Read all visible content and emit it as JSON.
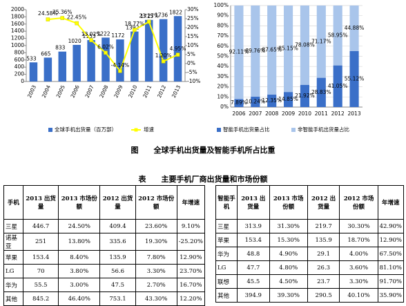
{
  "chart_data": [
    {
      "type": "bar",
      "categories": [
        "2003",
        "2004",
        "2005",
        "2006",
        "2007",
        "2008",
        "2009",
        "2010",
        "2011",
        "2012",
        "2013"
      ],
      "series": [
        {
          "name": "全球手机出货量（百万部）",
          "color": "#3a6fc8",
          "values": [
            533,
            665,
            833,
            1020,
            1153,
            1222,
            1172,
            1392,
            1715,
            1736,
            1822
          ]
        },
        {
          "name": "增速",
          "type": "line",
          "axis": "y2",
          "color": "#ffff00",
          "values": [
            null,
            24.58,
            25.36,
            22.45,
            13.02,
            6.02,
            -4.14,
            18.77,
            23.27,
            1.2,
            4.95
          ],
          "value_labels": [
            null,
            "24.58%",
            "25.36%",
            "22.45%",
            "13.02%",
            "6.02%",
            "-4.14%",
            "18.77%",
            "23.27%",
            "1.20%",
            "4.95%"
          ]
        }
      ],
      "ylim": [
        0,
        2000
      ],
      "yticks": [
        0,
        200,
        400,
        600,
        800,
        1000,
        1200,
        1400,
        1600,
        1800,
        2000
      ],
      "y2lim": [
        -10,
        30
      ],
      "y2ticks": [
        {
          "value": -10,
          "label": "-10%"
        },
        {
          "value": -5,
          "label": "-5%"
        },
        {
          "value": 0,
          "label": "0%"
        },
        {
          "value": 5,
          "label": "5%"
        },
        {
          "value": 10,
          "label": "10%"
        },
        {
          "value": 15,
          "label": "15%"
        },
        {
          "value": 20,
          "label": "20%"
        },
        {
          "value": 25,
          "label": "25%"
        },
        {
          "value": 30,
          "label": "30%"
        }
      ],
      "grid": false
    },
    {
      "type": "stacked_bar",
      "categories": [
        "2006",
        "2007",
        "2008",
        "2009",
        "2010",
        "2011",
        "2012",
        "2013"
      ],
      "series": [
        {
          "name": "智能手机出货量占比",
          "color": "#3a6fc8",
          "values": [
            7.89,
            10.24,
            12.35,
            14.85,
            21.92,
            28.83,
            41.05,
            55.12
          ],
          "value_labels": [
            "7.89%",
            "10.24%",
            "12.35%",
            "14.85%",
            "21.92%",
            "28.83%",
            "41.05%",
            "55.12%"
          ]
        },
        {
          "name": "非智能手机出货量占比",
          "color": "#a9c5eb",
          "values": [
            92.11,
            89.76,
            87.65,
            85.15,
            78.08,
            71.17,
            58.95,
            44.88
          ],
          "value_labels": [
            "92.11%",
            "89.76%",
            "87.65%",
            "85.15%",
            "78.08%",
            "71.17%",
            "58.95%",
            "44.88%"
          ]
        }
      ],
      "ylim": [
        0,
        100
      ],
      "yticks": [
        {
          "value": 0,
          "label": "0%"
        },
        {
          "value": 10,
          "label": "10%"
        },
        {
          "value": 20,
          "label": "20%"
        },
        {
          "value": 30,
          "label": "30%"
        },
        {
          "value": 40,
          "label": "40%"
        },
        {
          "value": 50,
          "label": "50%"
        },
        {
          "value": 60,
          "label": "60%"
        },
        {
          "value": 70,
          "label": "70%"
        },
        {
          "value": 80,
          "label": "80%"
        },
        {
          "value": 90,
          "label": "90%"
        },
        {
          "value": 100,
          "label": "100%"
        }
      ],
      "grid": true
    }
  ],
  "caption": "图　　全球手机出货量及智能手机所占比重",
  "table_title": "表　　主要手机厂商出货量和市场份额",
  "tables": [
    {
      "header": [
        "手机",
        "2013 出货量",
        "2013 市场份额",
        "2012 出货量",
        "2012 市场份额",
        "年增速"
      ],
      "rows": [
        [
          "三星",
          "446.7",
          "24.50%",
          "409.4",
          "23.60%",
          "9.10%"
        ],
        [
          "诺基亚",
          "251",
          "13.80%",
          "335.6",
          "19.30%",
          "-25.20%"
        ],
        [
          "苹果",
          "153.4",
          "8.40%",
          "135.9",
          "7.80%",
          "12.90%"
        ],
        [
          "LG",
          "70",
          "3.80%",
          "56.6",
          "3.30%",
          "23.70%"
        ],
        [
          "华为",
          "55.5",
          "3.00%",
          "47.5",
          "2.70%",
          "16.70%"
        ],
        [
          "其他",
          "845.2",
          "46.40%",
          "753.1",
          "43.30%",
          "12.20%"
        ]
      ]
    },
    {
      "header": [
        "智能手机",
        "2013 出货量",
        "2013 市场份额",
        "2012 出货量",
        "2012 市场份额",
        "年增速"
      ],
      "rows": [
        [
          "三星",
          "313.9",
          "31.30%",
          "219.7",
          "30.30%",
          "42.90%"
        ],
        [
          "苹果",
          "153.4",
          "15.30%",
          "135.9",
          "18.70%",
          "12.90%"
        ],
        [
          "华为",
          "48.8",
          "4.90%",
          "29.1",
          "4.00%",
          "67.50%"
        ],
        [
          "LG",
          "47.7",
          "4.80%",
          "26.3",
          "3.60%",
          "81.10%"
        ],
        [
          "联想",
          "45.5",
          "4.50%",
          "23.7",
          "3.30%",
          "91.70%"
        ],
        [
          "其他",
          "394.9",
          "39.30%",
          "290.5",
          "40.10%",
          "35.90%"
        ]
      ]
    }
  ]
}
